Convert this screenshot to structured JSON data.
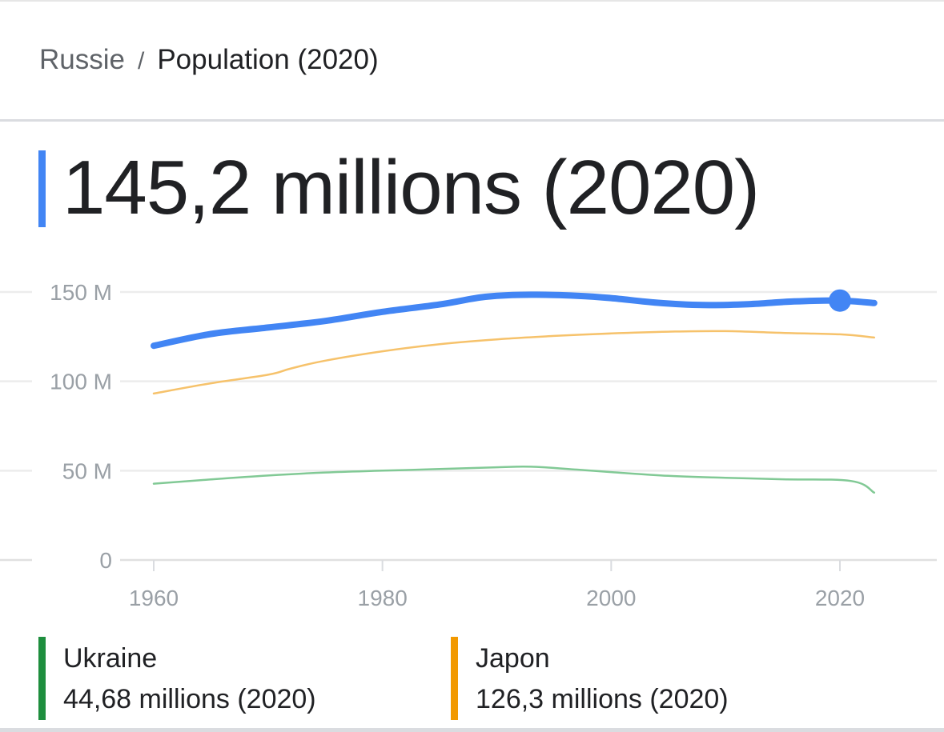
{
  "breadcrumb": {
    "country": "Russie",
    "separator": "/",
    "current": "Population (2020)"
  },
  "headline": {
    "value": "145,2 millions (2020)",
    "accent_color": "#4285f4"
  },
  "chart_data": {
    "type": "line",
    "title": "",
    "xlabel": "",
    "ylabel": "",
    "xlim": [
      1960,
      2024
    ],
    "ylim": [
      0,
      150
    ],
    "grid": true,
    "x_ticks": [
      1960,
      1980,
      2000,
      2020
    ],
    "x_tick_labels": [
      "1960",
      "1980",
      "2000",
      "2020"
    ],
    "y_ticks": [
      0,
      50,
      100,
      150
    ],
    "y_tick_labels": [
      "0",
      "50 M",
      "100 M",
      "150 M"
    ],
    "highlight": {
      "series": "Russie",
      "x": 2020,
      "y": 145.2
    },
    "series": [
      {
        "name": "Russie",
        "color": "#4285f4",
        "emphasis": true,
        "x": [
          1960,
          1965,
          1970,
          1975,
          1980,
          1985,
          1989,
          1993,
          1997,
          2000,
          2004,
          2008,
          2012,
          2016,
          2020,
          2023
        ],
        "y": [
          119.9,
          126.5,
          130.1,
          133.8,
          138.9,
          143.0,
          147.3,
          148.5,
          147.9,
          146.6,
          144.0,
          142.7,
          143.2,
          144.7,
          145.2,
          143.8
        ]
      },
      {
        "name": "Japon",
        "color": "#f6c26b",
        "emphasis": false,
        "x": [
          1960,
          1965,
          1970,
          1972,
          1975,
          1980,
          1985,
          1990,
          1995,
          2000,
          2005,
          2010,
          2015,
          2020,
          2023
        ],
        "y": [
          93.2,
          98.9,
          103.7,
          107.2,
          111.6,
          116.8,
          120.8,
          123.5,
          125.4,
          126.8,
          127.8,
          128.1,
          127.1,
          126.3,
          124.5
        ]
      },
      {
        "name": "Ukraine",
        "color": "#81c995",
        "emphasis": false,
        "x": [
          1960,
          1965,
          1970,
          1975,
          1980,
          1985,
          1990,
          1993,
          1997,
          2000,
          2005,
          2010,
          2015,
          2021,
          2023
        ],
        "y": [
          42.7,
          45.1,
          47.3,
          49.0,
          50.0,
          50.9,
          51.9,
          52.2,
          50.6,
          49.2,
          47.1,
          46.0,
          45.2,
          44.2,
          37.7
        ]
      }
    ]
  },
  "legend": [
    {
      "name": "Ukraine",
      "value": "44,68 millions (2020)",
      "color": "#1e8e3e"
    },
    {
      "name": "Japon",
      "value": "126,3 millions (2020)",
      "color": "#f29900"
    }
  ]
}
